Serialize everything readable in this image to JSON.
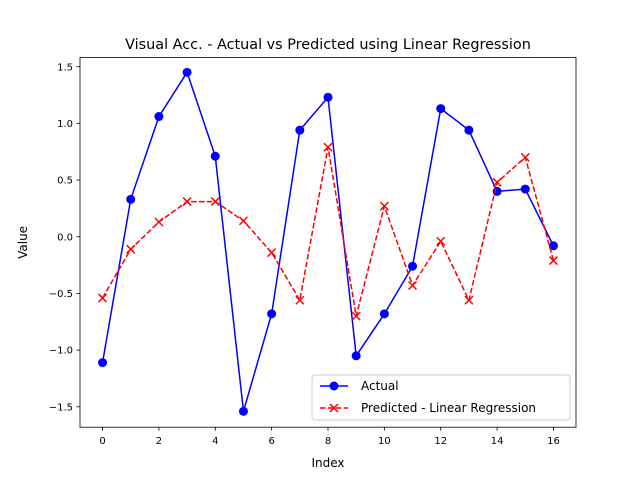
{
  "chart_data": {
    "type": "line",
    "title": "Visual Acc. - Actual vs Predicted using Linear Regression",
    "xlabel": "Index",
    "ylabel": "Value",
    "xlim": [
      -0.8,
      16.8
    ],
    "ylim": [
      -1.68,
      1.58
    ],
    "xticks": [
      0,
      2,
      4,
      6,
      8,
      10,
      12,
      14,
      16
    ],
    "xtick_labels": [
      "0",
      "2",
      "4",
      "6",
      "8",
      "10",
      "12",
      "14",
      "16"
    ],
    "yticks": [
      -1.5,
      -1.0,
      -0.5,
      0.0,
      0.5,
      1.0,
      1.5
    ],
    "ytick_labels": [
      "−1.5",
      "−1.0",
      "−0.5",
      "0.0",
      "0.5",
      "1.0",
      "1.5"
    ],
    "grid": false,
    "legend_position": "lower-right",
    "x": [
      0,
      1,
      2,
      3,
      4,
      5,
      6,
      7,
      8,
      9,
      10,
      11,
      12,
      13,
      14,
      15,
      16
    ],
    "series": [
      {
        "name": "Actual",
        "color": "#0000ff",
        "style": "solid",
        "marker": "circle",
        "values": [
          -1.11,
          0.33,
          1.06,
          1.45,
          0.71,
          -1.54,
          -0.68,
          0.94,
          1.23,
          -1.05,
          -0.68,
          -0.26,
          1.13,
          0.94,
          0.4,
          0.42,
          -0.08
        ]
      },
      {
        "name": "Predicted - Linear Regression",
        "color": "#ff0000",
        "style": "dashed",
        "marker": "x",
        "values": [
          -0.54,
          -0.11,
          0.13,
          0.31,
          0.31,
          0.14,
          -0.14,
          -0.56,
          0.79,
          -0.7,
          0.27,
          -0.43,
          -0.04,
          -0.56,
          0.48,
          0.7,
          -0.21
        ]
      }
    ]
  }
}
